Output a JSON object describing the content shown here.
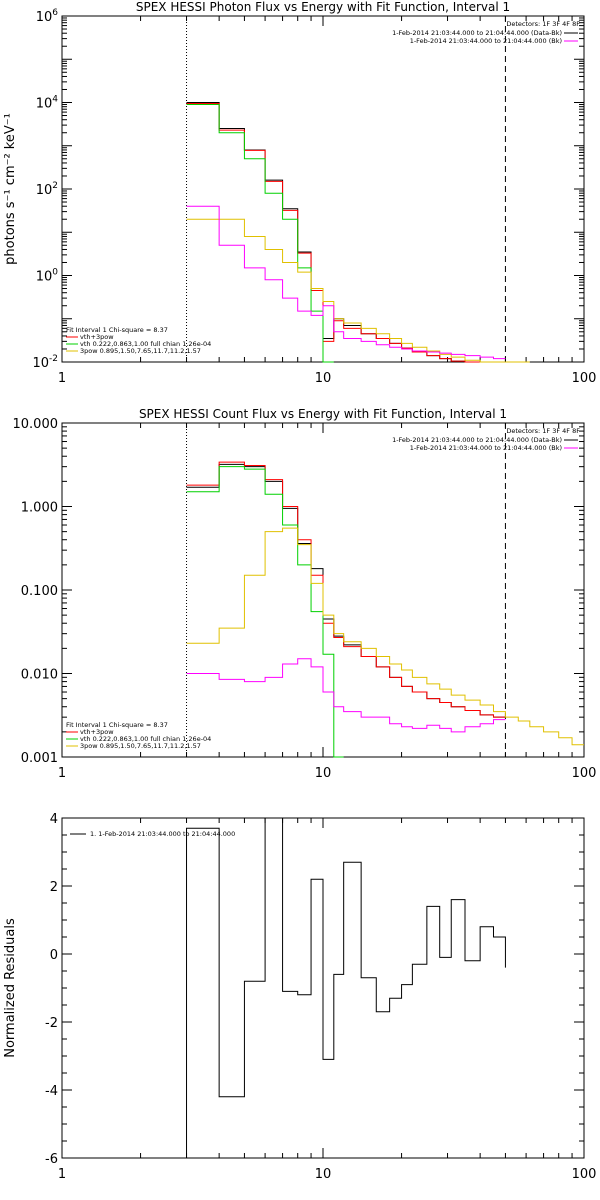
{
  "chart_data": [
    {
      "type": "line",
      "title": "SPEX HESSI Photon Flux vs Energy with Fit Function, Interval 1",
      "ylabel": "photons s⁻¹ cm⁻² keV⁻¹",
      "xscale": "log",
      "yscale": "log",
      "xlim": [
        1,
        100
      ],
      "ylim": [
        0.01,
        1000000
      ],
      "xticks": [
        {
          "v": 1,
          "label": "1"
        },
        {
          "v": 10,
          "label": "10"
        },
        {
          "v": 100,
          "label": "100"
        }
      ],
      "yticks": [
        {
          "v": 0.01,
          "base": "10",
          "exp": "-2"
        },
        {
          "v": 1,
          "base": "10",
          "exp": "0"
        },
        {
          "v": 100,
          "base": "10",
          "exp": "2"
        },
        {
          "v": 10000,
          "base": "10",
          "exp": "4"
        },
        {
          "v": 1000000,
          "base": "10",
          "exp": "6"
        }
      ],
      "vlines": [
        {
          "x": 3,
          "style": "dotted"
        },
        {
          "x": 50,
          "style": "dashed"
        }
      ],
      "legend_tr": {
        "position": "top-right",
        "header": "Detectors: 1F 3F 4F 8F",
        "entries": [
          {
            "text": "1-Feb-2014 21:03:44.000 to 21:04:44.000 (Data-Bk)",
            "color": "#000000"
          },
          {
            "text": "1-Feb-2014 21:03:44.000 to 21:04:44.000 (Bk)",
            "color": "#ff00ff"
          }
        ]
      },
      "legend_bl": {
        "position": "bottom-left",
        "header": "Fit Interval 1    Chi-square = 8.37",
        "entries": [
          {
            "text": "vth+3pow",
            "color": "#ff0000"
          },
          {
            "text": "vth 0.222,0.863,1.00  full chian 1.26e-04",
            "color": "#00d000"
          },
          {
            "text": "3pow 0.895,1.50,7.65,11.7,11.2,1.57",
            "color": "#e0c000"
          }
        ]
      },
      "edges": [
        3,
        4,
        5,
        6,
        7,
        8,
        9,
        10,
        11,
        12,
        14,
        16,
        18,
        20,
        22,
        25,
        28,
        31,
        35,
        40,
        45,
        50,
        56,
        62
      ],
      "series": [
        {
          "color": "#000000",
          "values": [
            10000,
            2500,
            800,
            160,
            35,
            3.5,
            0.5,
            0.035,
            0.1,
            0.07,
            0.045,
            0.035,
            0.027,
            0.021,
            0.017,
            0.014,
            0.012,
            0.0105,
            0.0095,
            0.0085,
            0.008,
            null,
            null
          ]
        },
        {
          "color": "#ff0000",
          "values": [
            9500,
            2300,
            780,
            150,
            32,
            3.3,
            0.45,
            0.03,
            0.09,
            0.06,
            0.045,
            0.035,
            0.027,
            0.021,
            0.017,
            0.014,
            0.012,
            0.0105,
            0.0095,
            0.0085,
            0.008,
            null,
            null
          ]
        },
        {
          "color": "#00d000",
          "values": [
            9000,
            2000,
            500,
            80,
            20,
            1.5,
            0.15,
            0.008,
            null,
            null,
            null,
            null,
            null,
            null,
            null,
            null,
            null,
            null,
            null,
            null,
            null,
            null,
            null
          ]
        },
        {
          "color": "#e0c000",
          "values": [
            20,
            20,
            8,
            4,
            2,
            1.2,
            0.5,
            0.25,
            0.1,
            0.08,
            0.06,
            0.045,
            0.035,
            0.027,
            0.022,
            0.018,
            0.015,
            0.013,
            0.011,
            0.0095,
            0.008,
            0.007,
            0.006
          ]
        },
        {
          "color": "#ff00ff",
          "values": [
            40,
            5,
            1.5,
            0.8,
            0.3,
            0.15,
            0.12,
            0.2,
            0.05,
            0.035,
            0.03,
            0.025,
            0.022,
            0.02,
            0.018,
            0.017,
            0.016,
            0.015,
            0.014,
            0.013,
            0.012,
            null,
            null
          ]
        }
      ]
    },
    {
      "type": "line",
      "title": "SPEX HESSI Count Flux vs Energy with Fit Function, Interval 1",
      "xscale": "log",
      "yscale": "log",
      "xlim": [
        1,
        100
      ],
      "ylim": [
        0.001,
        10
      ],
      "xticks": [
        {
          "v": 1,
          "label": "1"
        },
        {
          "v": 10,
          "label": "10"
        },
        {
          "v": 100,
          "label": "100"
        }
      ],
      "yticks": [
        {
          "v": 0.001,
          "label": "0.001"
        },
        {
          "v": 0.01,
          "label": "0.010"
        },
        {
          "v": 0.1,
          "label": "0.100"
        },
        {
          "v": 1,
          "label": "1.000"
        },
        {
          "v": 10,
          "label": "10.000"
        }
      ],
      "vlines": [
        {
          "x": 3,
          "style": "dotted"
        },
        {
          "x": 50,
          "style": "dashed"
        }
      ],
      "legend_tr": {
        "position": "top-right",
        "header": "Detectors: 1F 3F 4F 8F",
        "entries": [
          {
            "text": "1-Feb-2014 21:03:44.000 to 21:04:44.000 (Data-Bk)",
            "color": "#000000"
          },
          {
            "text": "1-Feb-2014 21:03:44.000 to 21:04:44.000 (Bk)",
            "color": "#ff00ff"
          }
        ]
      },
      "legend_bl": {
        "position": "bottom-left",
        "header": "Fit Interval 1    Chi-square = 8.37",
        "entries": [
          {
            "text": "vth+3pow",
            "color": "#ff0000"
          },
          {
            "text": "vth 0.222,0.863,1.00  full chian 1.26e-04",
            "color": "#00d000"
          },
          {
            "text": "3pow 0.895,1.50,7.65,11.7,11.2,1.57",
            "color": "#e0c000"
          }
        ]
      },
      "edges": [
        3,
        4,
        5,
        6,
        7,
        8,
        9,
        10,
        11,
        12,
        14,
        16,
        18,
        20,
        22,
        25,
        28,
        31,
        35,
        40,
        45,
        50,
        56,
        62,
        70,
        80,
        90,
        100
      ],
      "series": [
        {
          "color": "#000000",
          "values": [
            1.7,
            3.2,
            3.0,
            2.0,
            0.95,
            0.36,
            0.18,
            0.045,
            0.028,
            0.022,
            0.016,
            0.012,
            0.009,
            0.007,
            0.006,
            0.005,
            0.0045,
            0.004,
            0.0036,
            0.0032,
            0.003,
            null,
            null,
            null,
            null,
            null,
            null
          ]
        },
        {
          "color": "#ff0000",
          "values": [
            1.8,
            3.4,
            3.1,
            2.1,
            1.0,
            0.4,
            0.15,
            0.04,
            0.027,
            0.021,
            0.016,
            0.012,
            0.009,
            0.007,
            0.006,
            0.005,
            0.0045,
            0.004,
            0.0036,
            0.0032,
            0.003,
            null,
            null,
            null,
            null,
            null,
            null
          ]
        },
        {
          "color": "#00d000",
          "values": [
            1.5,
            3.0,
            2.8,
            1.4,
            0.6,
            0.2,
            0.055,
            0.017,
            0.0008,
            null,
            null,
            null,
            null,
            null,
            null,
            null,
            null,
            null,
            null,
            null,
            null,
            null,
            null,
            null,
            null,
            null,
            null
          ]
        },
        {
          "color": "#e0c000",
          "values": [
            0.023,
            0.035,
            0.15,
            0.5,
            0.55,
            0.35,
            0.12,
            0.05,
            0.03,
            0.024,
            0.02,
            0.016,
            0.013,
            0.011,
            0.009,
            0.0075,
            0.0065,
            0.0055,
            0.0048,
            0.0042,
            0.0035,
            0.003,
            0.0027,
            0.0023,
            0.002,
            0.0017,
            0.0014
          ]
        },
        {
          "color": "#ff00ff",
          "values": [
            0.01,
            0.0085,
            0.008,
            0.009,
            0.013,
            0.015,
            0.012,
            0.006,
            0.004,
            0.0035,
            0.003,
            0.003,
            0.0025,
            0.0023,
            0.0022,
            0.0024,
            0.0022,
            0.002,
            0.0023,
            0.0025,
            0.0028,
            null,
            null,
            null,
            null,
            null,
            null
          ]
        }
      ]
    },
    {
      "type": "line",
      "ylabel": "Normalized Residuals",
      "xscale": "log",
      "yscale": "linear",
      "xlim": [
        1,
        100
      ],
      "ylim": [
        -6,
        4
      ],
      "xticks": [
        {
          "v": 1,
          "label": "1"
        },
        {
          "v": 10,
          "label": "10"
        },
        {
          "v": 100,
          "label": "100"
        }
      ],
      "yticks": [
        {
          "v": -6,
          "label": "-6"
        },
        {
          "v": -4,
          "label": "-4"
        },
        {
          "v": -2,
          "label": "-2"
        },
        {
          "v": 0,
          "label": "0"
        },
        {
          "v": 2,
          "label": "2"
        },
        {
          "v": 4,
          "label": "4"
        }
      ],
      "vlines": [],
      "legend_tr": null,
      "legend_bl": null,
      "legend_tl": {
        "position": "top-left",
        "entries": [
          {
            "text": "1. 1-Feb-2014 21:03:44.000 to 21:04:44.000",
            "color": "#000000"
          }
        ]
      },
      "edges": [
        3,
        4,
        5,
        6,
        7,
        8,
        9,
        10,
        11,
        12,
        14,
        16,
        18,
        20,
        22,
        25,
        28,
        31,
        35,
        40,
        45,
        50
      ],
      "drop_ends": true,
      "series": [
        {
          "color": "#000000",
          "values": [
            3.7,
            -4.2,
            -0.8,
            4.0,
            -1.1,
            -1.2,
            2.2,
            -3.1,
            -0.6,
            2.7,
            -0.7,
            -1.7,
            -1.3,
            -0.9,
            -0.3,
            1.4,
            -0.1,
            1.6,
            -0.2,
            0.8,
            0.5,
            -0.4
          ]
        }
      ]
    }
  ]
}
